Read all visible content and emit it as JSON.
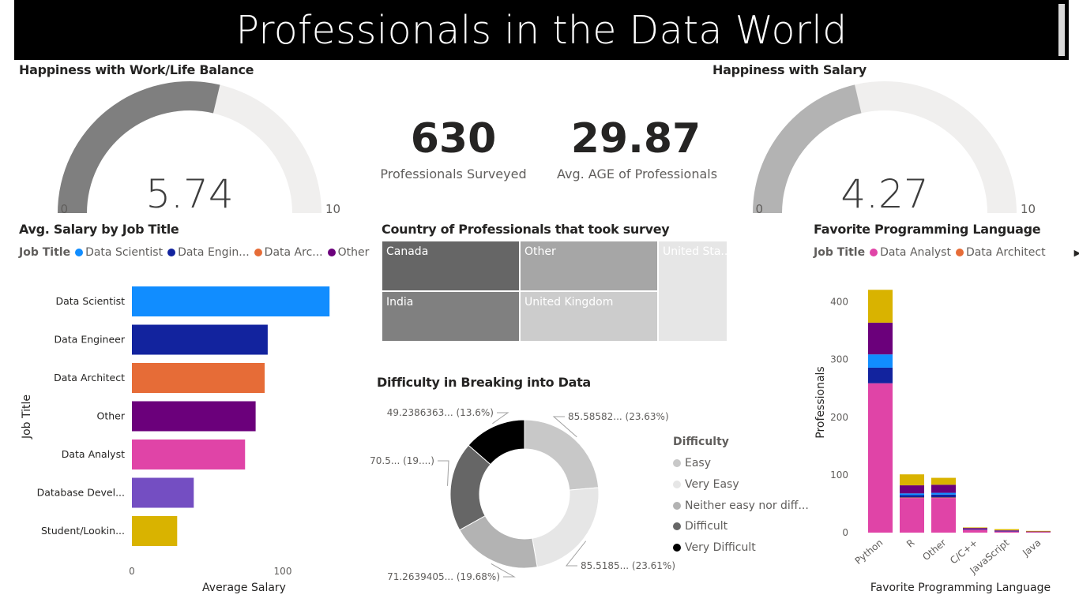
{
  "header": {
    "title": "Professionals in the Data World"
  },
  "work_life_gauge": {
    "title": "Happiness with Work/Life Balance",
    "min_label": "0",
    "max_label": "10",
    "value_label": "5.74",
    "value": 5.74,
    "min": 0,
    "max": 10,
    "fill_color": "#7f7f7f",
    "track_color": "#f0efee"
  },
  "salary_gauge": {
    "title": "Happiness with Salary",
    "min_label": "0",
    "max_label": "10",
    "value_label": "4.27",
    "value": 4.27,
    "min": 0,
    "max": 10,
    "fill_color": "#b3b3b3",
    "track_color": "#f0efee"
  },
  "kpis": [
    {
      "value": "630",
      "label": "Professionals Surveyed"
    },
    {
      "value": "29.87",
      "label": "Avg. AGE of Professionals"
    }
  ],
  "salary_chart": {
    "title": "Avg. Salary by Job Title",
    "legend": {
      "title": "Job Title",
      "items": [
        {
          "label": "Data Scientist",
          "color": "#118dff"
        },
        {
          "label": "Data Engin...",
          "color": "#12239e"
        },
        {
          "label": "Data Arc...",
          "color": "#e66c37"
        },
        {
          "label": "Other",
          "color": "#6b007b"
        }
      ],
      "arrow": "▶"
    },
    "y_axis_title": "Job Title",
    "x_axis_title": "Average Salary"
  },
  "treemap": {
    "title": "Country of Professionals that took survey",
    "cells": [
      {
        "label": "Canada",
        "color": "#666666"
      },
      {
        "label": "Other",
        "color": "#a6a6a6"
      },
      {
        "label": "United Sta...",
        "color": "#e6e6e6"
      },
      {
        "label": "India",
        "color": "#808080"
      },
      {
        "label": "United Kingdom",
        "color": "#cccccc"
      }
    ]
  },
  "donut": {
    "title": "Difficulty in Breaking into Data",
    "legend_title": "Difficulty",
    "slices": [
      {
        "name": "Easy",
        "color": "#c8c8c8",
        "percent": 23.63,
        "label": "85.58582... (23.63%)"
      },
      {
        "name": "Very Easy",
        "color": "#e6e6e6",
        "percent": 23.61,
        "label": "85.5185... (23.61%)"
      },
      {
        "name": "Neither easy nor diff...",
        "color": "#b3b3b3",
        "percent": 19.68,
        "label": "71.2639405... (19.68%)"
      },
      {
        "name": "Difficult",
        "color": "#666666",
        "percent": 19.48,
        "label": "70.5... (19....)"
      },
      {
        "name": "Very Difficult",
        "color": "#000000",
        "percent": 13.6,
        "label": "49.2386363... (13.6%)"
      }
    ]
  },
  "lang_chart": {
    "title": "Favorite Programming Language",
    "legend": {
      "title": "Job Title",
      "items": [
        {
          "label": "Data Analyst",
          "color": "#e044a7"
        },
        {
          "label": "Data Architect",
          "color": "#e66c37"
        }
      ],
      "arrow": "▶"
    },
    "y_axis_title": "Professionals",
    "x_axis_title": "Favorite Programming Language"
  },
  "chart_data": [
    {
      "type": "bar",
      "orientation": "horizontal",
      "title": "Avg. Salary by Job Title",
      "xlabel": "Average Salary",
      "ylabel": "Job Title",
      "categories": [
        "Data Scientist",
        "Data Engineer",
        "Data Architect",
        "Other",
        "Data Analyst",
        "Database Devel...",
        "Student/Lookin..."
      ],
      "values": [
        131,
        90,
        88,
        82,
        75,
        41,
        30
      ],
      "colors": [
        "#118dff",
        "#12239e",
        "#e66c37",
        "#6b007b",
        "#e044a7",
        "#744ec2",
        "#d9b300"
      ],
      "xticks": [
        0,
        100
      ],
      "xlim": [
        0,
        140
      ],
      "grid": false
    },
    {
      "type": "bar",
      "stacked": true,
      "title": "Favorite Programming Language",
      "xlabel": "Favorite Programming Language",
      "ylabel": "Professionals",
      "categories": [
        "Python",
        "R",
        "Other",
        "C/C++",
        "JavaScript",
        "Java"
      ],
      "yticks": [
        0,
        100,
        200,
        300,
        400
      ],
      "ylim": [
        0,
        420
      ],
      "series": [
        {
          "name": "Data Analyst",
          "color": "#e044a7",
          "values": [
            259,
            60,
            60,
            5,
            2,
            1
          ]
        },
        {
          "color": "#e66c37",
          "values": [
            0,
            1,
            1,
            0,
            0,
            0
          ]
        },
        {
          "color": "#12239e",
          "values": [
            27,
            4,
            5,
            1,
            1,
            0
          ]
        },
        {
          "color": "#118dff",
          "values": [
            23,
            3,
            3,
            0,
            0,
            0
          ]
        },
        {
          "color": "#6b007b",
          "values": [
            55,
            14,
            14,
            2,
            1,
            1
          ]
        },
        {
          "color": "#d9b300",
          "values": [
            57,
            19,
            12,
            1,
            2,
            1
          ]
        }
      ],
      "grid": false
    },
    {
      "type": "pie",
      "subtype": "donut",
      "title": "Difficulty in Breaking into Data",
      "legend_title": "Difficulty",
      "labels": [
        "Easy",
        "Very Easy",
        "Neither easy nor diff...",
        "Difficult",
        "Very Difficult"
      ],
      "values": [
        23.63,
        23.61,
        19.68,
        19.48,
        13.6
      ],
      "colors": [
        "#c8c8c8",
        "#e6e6e6",
        "#b3b3b3",
        "#666666",
        "#000000"
      ],
      "legend_position": "right"
    },
    {
      "type": "treemap",
      "title": "Country of Professionals that took survey",
      "labels": [
        "Canada",
        "Other",
        "United Sta...",
        "India",
        "United Kingdom"
      ]
    },
    {
      "type": "gauge",
      "title": "Happiness with Work/Life Balance",
      "value": 5.74,
      "min": 0,
      "max": 10
    },
    {
      "type": "gauge",
      "title": "Happiness with Salary",
      "value": 4.27,
      "min": 0,
      "max": 10
    }
  ]
}
